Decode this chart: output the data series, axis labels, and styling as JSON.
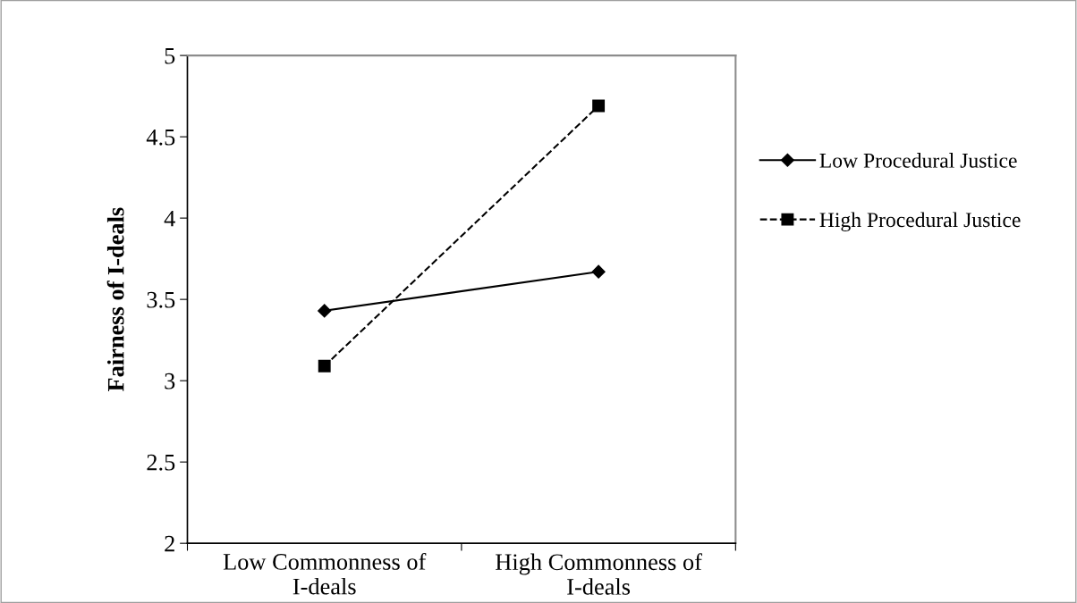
{
  "chart_data": {
    "type": "line",
    "ylabel": "Fairness of I-deals",
    "categories": [
      "Low Commonness of\nI-deals",
      "High Commonness of\nI-deals"
    ],
    "series": [
      {
        "name": "Low Procedural Justice",
        "color": "#000000",
        "values": [
          3.43,
          3.67
        ],
        "marker": "diamond",
        "line_style": "solid"
      },
      {
        "name": "High Procedural Justice",
        "color": "#000000",
        "values": [
          3.09,
          4.69
        ],
        "marker": "square",
        "line_style": "dashed"
      }
    ],
    "ylim": [
      2,
      5
    ],
    "yticks": [
      2,
      2.5,
      3,
      3.5,
      4,
      4.5,
      5
    ],
    "grid": false,
    "legend": "right"
  }
}
